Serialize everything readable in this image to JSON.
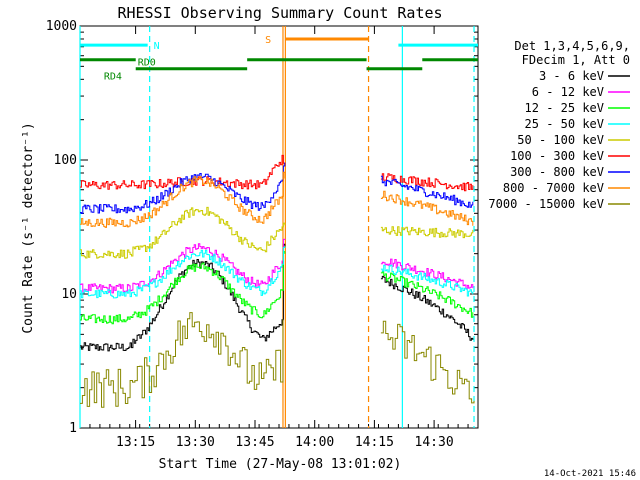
{
  "chart_data": {
    "type": "line",
    "title": "RHESSI Observing Summary Count Rates",
    "xlabel": "Start Time (27-May-08 13:01:02)",
    "ylabel": "Count Rate (s⁻¹ detector⁻¹)",
    "yscale": "log",
    "ylim": [
      1,
      1000
    ],
    "xlim_minutes": [
      0,
      100
    ],
    "y_ticks": [
      "1",
      "10",
      "100",
      "1000"
    ],
    "x_ticks": [
      {
        "label": "13:15",
        "minute": 13.97
      },
      {
        "label": "13:30",
        "minute": 28.97
      },
      {
        "label": "13:45",
        "minute": 43.97
      },
      {
        "label": "14:00",
        "minute": 58.97
      },
      {
        "label": "14:15",
        "minute": 73.97
      },
      {
        "label": "14:30",
        "minute": 88.97
      }
    ],
    "legend": {
      "placement": "right",
      "header": [
        "Det 1,3,4,5,6,9,",
        "FDecim 1, Att 0"
      ]
    },
    "series": [
      {
        "name": "3 - 6 keV",
        "color": "#000000",
        "peak": 17,
        "base": 4,
        "post": 13,
        "postEnd": 4.5
      },
      {
        "name": "6 - 12 keV",
        "color": "#ff00ff",
        "peak": 22,
        "base": 11,
        "post": 18,
        "postEnd": 11
      },
      {
        "name": "12 - 25 keV",
        "color": "#00ff00",
        "peak": 16,
        "base": 6.5,
        "post": 14,
        "postEnd": 7
      },
      {
        "name": "25 - 50 keV",
        "color": "#00ffff",
        "peak": 20,
        "base": 10,
        "post": 16,
        "postEnd": 10
      },
      {
        "name": "50 - 100 keV",
        "color": "#cccc00",
        "peak": 42,
        "base": 20,
        "post": 30,
        "postEnd": 28
      },
      {
        "name": "100 - 300 keV",
        "color": "#ff0000",
        "peak": 70,
        "base": 65,
        "post": 75,
        "postEnd": 62
      },
      {
        "name": "300 - 800 keV",
        "color": "#0000ff",
        "peak": 75,
        "base": 43,
        "post": 70,
        "postEnd": 45
      },
      {
        "name": "800 - 7000 keV",
        "color": "#ff8800",
        "peak": 70,
        "base": 34,
        "post": 55,
        "postEnd": 34
      },
      {
        "name": "7000 - 15000 keV",
        "color": "#888800",
        "peak": 6,
        "base": 2,
        "post": 5,
        "postEnd": 1.5
      }
    ],
    "annotations": {
      "attenuator": [
        {
          "label": "N",
          "color": "#00ffff",
          "segments": [
            [
              0,
              17
            ],
            [
              80,
              100
            ]
          ],
          "level": 720
        },
        {
          "label": "S",
          "color": "#ff8800",
          "segments": [
            [
              51.5,
              72.5
            ]
          ],
          "level": 800
        }
      ],
      "decimation": [
        {
          "label": "RD0",
          "color": "#008800",
          "segments": [
            [
              0,
              14
            ],
            [
              42,
              72
            ],
            [
              86,
              100
            ]
          ],
          "level": 560
        },
        {
          "label": "RD4",
          "color": "#008800",
          "segments": [
            [
              14,
              42
            ],
            [
              72,
              86
            ]
          ],
          "level": 480
        }
      ],
      "vlines": [
        {
          "minute": 0,
          "color": "#00ffff",
          "style": "solid"
        },
        {
          "minute": 17.5,
          "color": "#00ffff",
          "style": "dashed"
        },
        {
          "minute": 51.0,
          "color": "#ff8800",
          "style": "solid"
        },
        {
          "minute": 51.6,
          "color": "#ff8800",
          "style": "solid"
        },
        {
          "minute": 72.5,
          "color": "#ff8800",
          "style": "dashed"
        },
        {
          "minute": 81.0,
          "color": "#00ffff",
          "style": "solid"
        },
        {
          "minute": 99.0,
          "color": "#00ffff",
          "style": "dashed"
        }
      ],
      "gaps": [
        [
          51.5,
          75.5
        ]
      ]
    },
    "footer_timestamp": "14-Oct-2021 15:46"
  }
}
